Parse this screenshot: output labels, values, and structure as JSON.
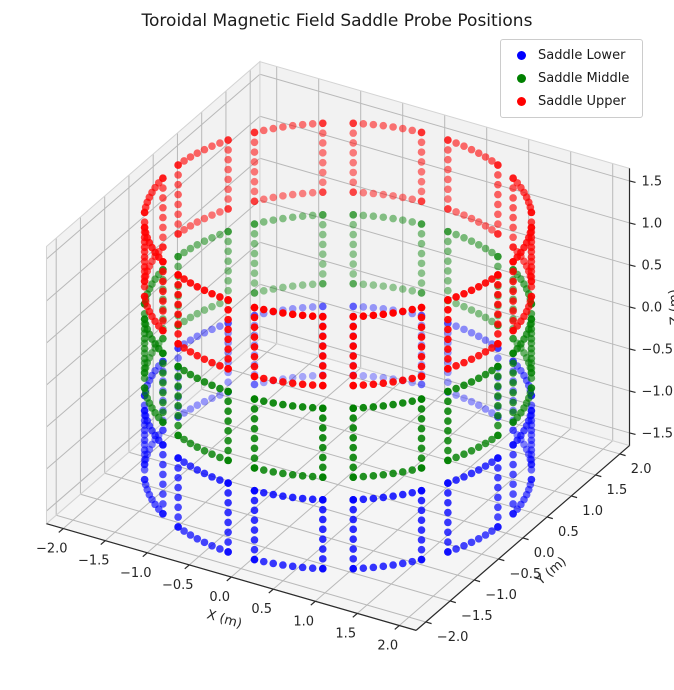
{
  "title": "Toroidal Magnetic Field Saddle Probe Positions",
  "legend": {
    "items": [
      {
        "label": "Saddle Lower",
        "color": "#0000ff"
      },
      {
        "label": "Saddle Middle",
        "color": "#008000"
      },
      {
        "label": "Saddle Upper",
        "color": "#ff0000"
      }
    ]
  },
  "axes": {
    "x": {
      "label": "X (m)",
      "range": [
        -2.2,
        2.2
      ],
      "tick_values": [
        -2,
        -1.5,
        -1,
        -0.5,
        0,
        0.5,
        1,
        1.5,
        2
      ],
      "tick_labels": [
        "−2.0",
        "−1.5",
        "−1.0",
        "−0.5",
        "0.0",
        "0.5",
        "1.0",
        "1.5",
        "2.0"
      ]
    },
    "y": {
      "label": "Y (m)",
      "range": [
        -2.2,
        2.2
      ],
      "tick_values": [
        -2,
        -1.5,
        -1,
        -0.5,
        0,
        0.5,
        1,
        1.5,
        2
      ],
      "tick_labels": [
        "−2.0",
        "−1.5",
        "−1.0",
        "−0.5",
        "0.0",
        "0.5",
        "1.0",
        "1.5",
        "2.0"
      ]
    },
    "z": {
      "label": "Z (m)",
      "range": [
        -1.65,
        1.65
      ],
      "tick_values": [
        -1.5,
        -1,
        -0.5,
        0,
        0.5,
        1,
        1.5
      ],
      "tick_labels": [
        "−1.5",
        "−1.0",
        "−0.5",
        "0.0",
        "0.5",
        "1.0",
        "1.5"
      ]
    }
  },
  "chart_data": {
    "type": "scatter",
    "projection": "3d",
    "title": "Toroidal Magnetic Field Saddle Probe Positions",
    "xlabel": "X (m)",
    "ylabel": "Y (m)",
    "zlabel": "Z (m)",
    "view": {
      "elev": 30,
      "azim": -60
    },
    "grid": true,
    "legend_position": "upper right",
    "series": [
      {
        "name": "Saddle Lower",
        "color": "#0000ff",
        "z_bottom": -1.5,
        "z_top": -0.68
      },
      {
        "name": "Saddle Middle",
        "color": "#008000",
        "z_bottom": -0.41,
        "z_top": 0.41
      },
      {
        "name": "Saddle Upper",
        "color": "#ff0000",
        "z_bottom": 0.68,
        "z_top": 1.5
      }
    ],
    "geometry": {
      "radius": 2.0,
      "n_saddles_per_ring": 12,
      "saddle_center_offset_deg": 15,
      "saddle_half_width_deg": 10.5,
      "points_per_edge": 8,
      "points_per_saddle_loop": 32
    },
    "style": {
      "marker_radius_px": 3.8,
      "depth_alpha_min": 0.32,
      "depth_alpha_max": 1.0,
      "pane_color": "#f2f2f2",
      "floor_color": "#f5f5f5",
      "grid_color": "#b9b9b9",
      "pane_edge_color": "#d4d4d4",
      "axis_line_color": "#2b2b2b",
      "tick_text_color": "#262626"
    }
  }
}
